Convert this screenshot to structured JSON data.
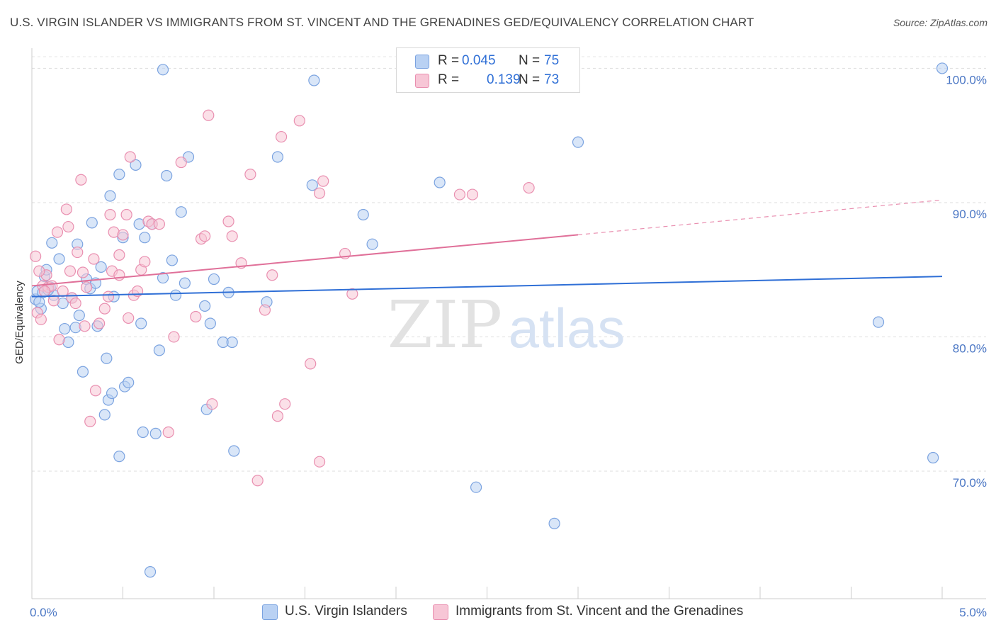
{
  "title": "U.S. VIRGIN ISLANDER VS IMMIGRANTS FROM ST. VINCENT AND THE GRENADINES GED/EQUIVALENCY CORRELATION CHART",
  "source": "Source: ZipAtlas.com",
  "watermark": {
    "zip": "ZIP",
    "atlas": "atlas"
  },
  "legend": {
    "rows": [
      {
        "r_label": "R =",
        "r_value": "0.045",
        "n_label": "N =",
        "n_value": "75",
        "fill": "#b9d1f3",
        "stroke": "#7ba3e0"
      },
      {
        "r_label": "R =",
        "r_value": "0.139",
        "n_label": "N =",
        "n_value": "73",
        "fill": "#f7c6d6",
        "stroke": "#e98fb0"
      }
    ]
  },
  "bottom_legend": [
    {
      "label": "U.S. Virgin Islanders",
      "fill": "#b9d1f3",
      "stroke": "#7ba3e0"
    },
    {
      "label": "Immigrants from St. Vincent and the Grenadines",
      "fill": "#f7c6d6",
      "stroke": "#e98fb0"
    }
  ],
  "chart_data": {
    "type": "scatter",
    "title": "U.S. VIRGIN ISLANDER VS IMMIGRANTS FROM ST. VINCENT AND THE GRENADINES GED/EQUIVALENCY CORRELATION CHART",
    "xlabel": "",
    "ylabel": "GED/Equivalency",
    "xlim": [
      0,
      5
    ],
    "ylim": [
      60.5,
      101.5
    ],
    "x_tick_labels": [
      {
        "value": 0,
        "label": "0.0%"
      },
      {
        "value": 5,
        "label": "5.0%"
      }
    ],
    "y_tick_labels": [
      {
        "value": 100,
        "label": "100.0%"
      },
      {
        "value": 90,
        "label": "90.0%"
      },
      {
        "value": 80,
        "label": "80.0%"
      },
      {
        "value": 70,
        "label": "70.0%"
      }
    ],
    "grid": true,
    "legend_position": "top-center",
    "series": [
      {
        "name": "U.S. Virgin Islanders",
        "color": "#7ba3e0",
        "fill": "#b9d1f3",
        "trend": {
          "x": [
            0,
            5
          ],
          "y": [
            83.0,
            84.5
          ]
        },
        "points": [
          [
            0.02,
            82.8
          ],
          [
            0.03,
            83.4
          ],
          [
            0.05,
            82.1
          ],
          [
            0.07,
            84.5
          ],
          [
            0.08,
            85.0
          ],
          [
            0.1,
            83.7
          ],
          [
            0.12,
            83.1
          ],
          [
            0.11,
            87.0
          ],
          [
            0.15,
            85.8
          ],
          [
            0.17,
            82.5
          ],
          [
            0.18,
            80.6
          ],
          [
            0.2,
            79.6
          ],
          [
            0.22,
            82.9
          ],
          [
            0.24,
            80.7
          ],
          [
            0.25,
            86.9
          ],
          [
            0.26,
            81.6
          ],
          [
            0.28,
            77.4
          ],
          [
            0.3,
            84.3
          ],
          [
            0.32,
            83.6
          ],
          [
            0.33,
            88.5
          ],
          [
            0.35,
            84.0
          ],
          [
            0.36,
            80.8
          ],
          [
            0.38,
            85.2
          ],
          [
            0.4,
            74.2
          ],
          [
            0.41,
            78.4
          ],
          [
            0.42,
            75.3
          ],
          [
            0.43,
            90.5
          ],
          [
            0.44,
            75.8
          ],
          [
            0.45,
            83.0
          ],
          [
            0.48,
            92.1
          ],
          [
            0.48,
            71.1
          ],
          [
            0.5,
            87.4
          ],
          [
            0.51,
            76.3
          ],
          [
            0.53,
            76.6
          ],
          [
            0.57,
            92.8
          ],
          [
            0.59,
            88.4
          ],
          [
            0.6,
            81.0
          ],
          [
            0.61,
            72.9
          ],
          [
            0.62,
            87.4
          ],
          [
            0.65,
            62.5
          ],
          [
            0.66,
            88.4
          ],
          [
            0.68,
            72.8
          ],
          [
            0.7,
            79.0
          ],
          [
            0.72,
            99.9
          ],
          [
            0.72,
            84.4
          ],
          [
            0.74,
            92.0
          ],
          [
            0.77,
            85.7
          ],
          [
            0.79,
            83.1
          ],
          [
            0.82,
            89.3
          ],
          [
            0.84,
            84.0
          ],
          [
            0.86,
            93.4
          ],
          [
            0.95,
            82.3
          ],
          [
            0.96,
            74.6
          ],
          [
            0.98,
            81.0
          ],
          [
            1.0,
            84.3
          ],
          [
            1.05,
            79.6
          ],
          [
            1.08,
            83.3
          ],
          [
            1.1,
            79.6
          ],
          [
            1.11,
            71.5
          ],
          [
            1.29,
            82.6
          ],
          [
            1.35,
            93.4
          ],
          [
            1.54,
            91.3
          ],
          [
            1.55,
            99.1
          ],
          [
            1.82,
            89.1
          ],
          [
            1.87,
            86.9
          ],
          [
            2.24,
            91.5
          ],
          [
            2.44,
            68.8
          ],
          [
            2.87,
            66.1
          ],
          [
            3.0,
            94.5
          ],
          [
            4.65,
            81.1
          ],
          [
            4.95,
            71.0
          ],
          [
            5.0,
            100.0
          ],
          [
            0.04,
            82.6
          ],
          [
            0.06,
            83.3
          ],
          [
            0.09,
            83.5
          ]
        ]
      },
      {
        "name": "Immigrants from St. Vincent and the Grenadines",
        "color": "#e98fb0",
        "fill": "#f7c6d6",
        "trend": {
          "x": [
            0,
            3.0
          ],
          "y": [
            83.8,
            87.6
          ],
          "dashed_to": {
            "x": 5,
            "y": 90.2
          }
        },
        "points": [
          [
            0.02,
            86.0
          ],
          [
            0.03,
            81.8
          ],
          [
            0.05,
            81.3
          ],
          [
            0.06,
            83.8
          ],
          [
            0.08,
            84.6
          ],
          [
            0.09,
            83.7
          ],
          [
            0.11,
            83.8
          ],
          [
            0.12,
            82.7
          ],
          [
            0.14,
            87.8
          ],
          [
            0.15,
            79.8
          ],
          [
            0.17,
            83.4
          ],
          [
            0.19,
            89.5
          ],
          [
            0.2,
            88.2
          ],
          [
            0.21,
            84.9
          ],
          [
            0.22,
            82.9
          ],
          [
            0.24,
            82.5
          ],
          [
            0.25,
            86.3
          ],
          [
            0.27,
            91.7
          ],
          [
            0.28,
            84.8
          ],
          [
            0.29,
            80.8
          ],
          [
            0.3,
            83.7
          ],
          [
            0.32,
            73.7
          ],
          [
            0.34,
            85.8
          ],
          [
            0.35,
            76.0
          ],
          [
            0.37,
            81.0
          ],
          [
            0.4,
            82.1
          ],
          [
            0.42,
            83.0
          ],
          [
            0.43,
            89.1
          ],
          [
            0.44,
            84.9
          ],
          [
            0.45,
            87.8
          ],
          [
            0.48,
            84.6
          ],
          [
            0.48,
            86.1
          ],
          [
            0.5,
            87.6
          ],
          [
            0.52,
            89.1
          ],
          [
            0.53,
            81.4
          ],
          [
            0.54,
            93.4
          ],
          [
            0.56,
            83.1
          ],
          [
            0.58,
            83.4
          ],
          [
            0.6,
            85.0
          ],
          [
            0.62,
            85.6
          ],
          [
            0.64,
            88.6
          ],
          [
            0.66,
            88.4
          ],
          [
            0.7,
            88.4
          ],
          [
            0.75,
            72.9
          ],
          [
            0.78,
            80.0
          ],
          [
            0.82,
            93.0
          ],
          [
            0.9,
            81.5
          ],
          [
            0.93,
            87.3
          ],
          [
            0.95,
            87.5
          ],
          [
            0.97,
            96.5
          ],
          [
            0.99,
            75.0
          ],
          [
            1.08,
            88.6
          ],
          [
            1.1,
            87.5
          ],
          [
            1.15,
            85.5
          ],
          [
            1.2,
            92.1
          ],
          [
            1.24,
            69.3
          ],
          [
            1.28,
            82.0
          ],
          [
            1.32,
            84.6
          ],
          [
            1.35,
            74.1
          ],
          [
            1.37,
            94.9
          ],
          [
            1.39,
            75.0
          ],
          [
            1.47,
            96.1
          ],
          [
            1.53,
            78.0
          ],
          [
            1.58,
            90.7
          ],
          [
            1.58,
            70.7
          ],
          [
            1.6,
            91.6
          ],
          [
            1.72,
            86.2
          ],
          [
            1.76,
            83.2
          ],
          [
            2.35,
            90.6
          ],
          [
            2.42,
            90.6
          ],
          [
            2.73,
            91.1
          ],
          [
            0.04,
            84.9
          ],
          [
            0.07,
            83.4
          ]
        ]
      }
    ]
  }
}
